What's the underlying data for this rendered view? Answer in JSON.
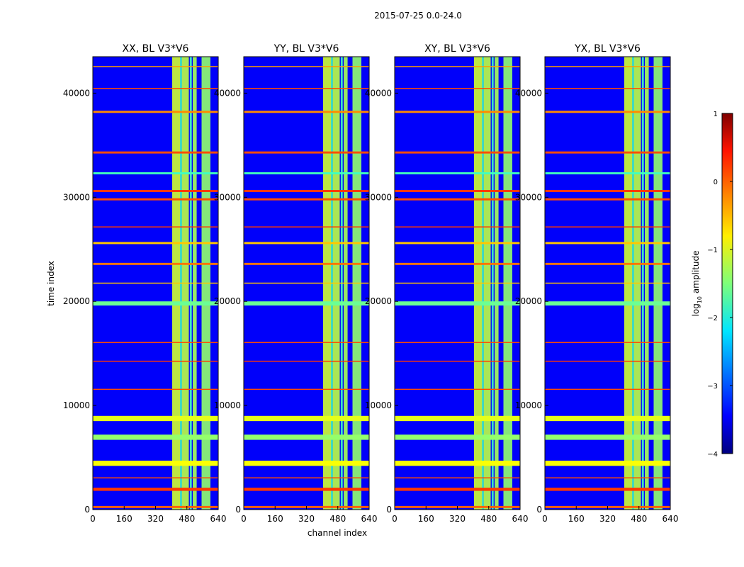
{
  "figure": {
    "title": "2015-07-25 0.0-24.0",
    "xlabel": "channel index",
    "ylabel": "time index"
  },
  "chart_data": {
    "type": "heatmap",
    "colormap": "jet",
    "panels": [
      {
        "title": "XX, BL V3*V6"
      },
      {
        "title": "YY, BL V3*V6"
      },
      {
        "title": "XY, BL V3*V6"
      },
      {
        "title": "YX, BL V3*V6"
      }
    ],
    "x_ticks": [
      {
        "value": 0,
        "label": "0"
      },
      {
        "value": 160,
        "label": "160"
      },
      {
        "value": 320,
        "label": "320"
      },
      {
        "value": 480,
        "label": "480"
      },
      {
        "value": 640,
        "label": "640"
      }
    ],
    "y_ticks": [
      {
        "value": 0,
        "label": "0"
      },
      {
        "value": 10000,
        "label": "10000"
      },
      {
        "value": 20000,
        "label": "20000"
      },
      {
        "value": 30000,
        "label": "30000"
      },
      {
        "value": 40000,
        "label": "40000"
      }
    ],
    "xlim": [
      0,
      640
    ],
    "ylim": [
      0,
      43500
    ],
    "colorbar": {
      "label": "log10 amplitude",
      "label_main": "log",
      "label_sub": "10",
      "label_tail": " amplitude",
      "range": [
        -4,
        1
      ],
      "ticks": [
        {
          "value": 1,
          "label": "1"
        },
        {
          "value": 0,
          "label": "0"
        },
        {
          "value": -1,
          "label": "−1"
        },
        {
          "value": -2,
          "label": "−2"
        },
        {
          "value": -3,
          "label": "−3"
        },
        {
          "value": -4,
          "label": "−4"
        }
      ]
    },
    "background_log_amplitude": -3.4,
    "bright_channel_bands": [
      {
        "from": 405,
        "to": 445,
        "level": -1.1
      },
      {
        "from": 445,
        "to": 455,
        "level": -1.8
      },
      {
        "from": 455,
        "to": 490,
        "level": -1.2
      },
      {
        "from": 495,
        "to": 505,
        "level": -1.8
      },
      {
        "from": 510,
        "to": 530,
        "level": -1.3
      },
      {
        "from": 555,
        "to": 600,
        "level": -1.4
      }
    ],
    "hot_time_bands": [
      {
        "from": 150,
        "to": 350,
        "level": -0.1
      },
      {
        "from": 1800,
        "to": 2100,
        "level": 0.1
      },
      {
        "from": 3000,
        "to": 3100,
        "level": 0.0
      },
      {
        "from": 4200,
        "to": 4700,
        "level": -0.9
      },
      {
        "from": 6700,
        "to": 7200,
        "level": -1.4
      },
      {
        "from": 8500,
        "to": 9000,
        "level": -1.0
      },
      {
        "from": 11500,
        "to": 11600,
        "level": 0.0
      },
      {
        "from": 14200,
        "to": 14300,
        "level": 0.1
      },
      {
        "from": 16000,
        "to": 16100,
        "level": 0.0
      },
      {
        "from": 19600,
        "to": 20000,
        "level": -1.6
      },
      {
        "from": 21700,
        "to": 21800,
        "level": -0.6
      },
      {
        "from": 23500,
        "to": 23700,
        "level": -0.2
      },
      {
        "from": 25500,
        "to": 25700,
        "level": -0.6
      },
      {
        "from": 27100,
        "to": 27200,
        "level": 0.1
      },
      {
        "from": 29700,
        "to": 29900,
        "level": 0.0
      },
      {
        "from": 30500,
        "to": 30700,
        "level": 0.1
      },
      {
        "from": 32200,
        "to": 32400,
        "level": -1.8
      },
      {
        "from": 34200,
        "to": 34400,
        "level": 0.0
      },
      {
        "from": 38100,
        "to": 38300,
        "level": -0.3
      },
      {
        "from": 40400,
        "to": 40500,
        "level": 0.0
      },
      {
        "from": 42500,
        "to": 42600,
        "level": -0.4
      }
    ]
  }
}
